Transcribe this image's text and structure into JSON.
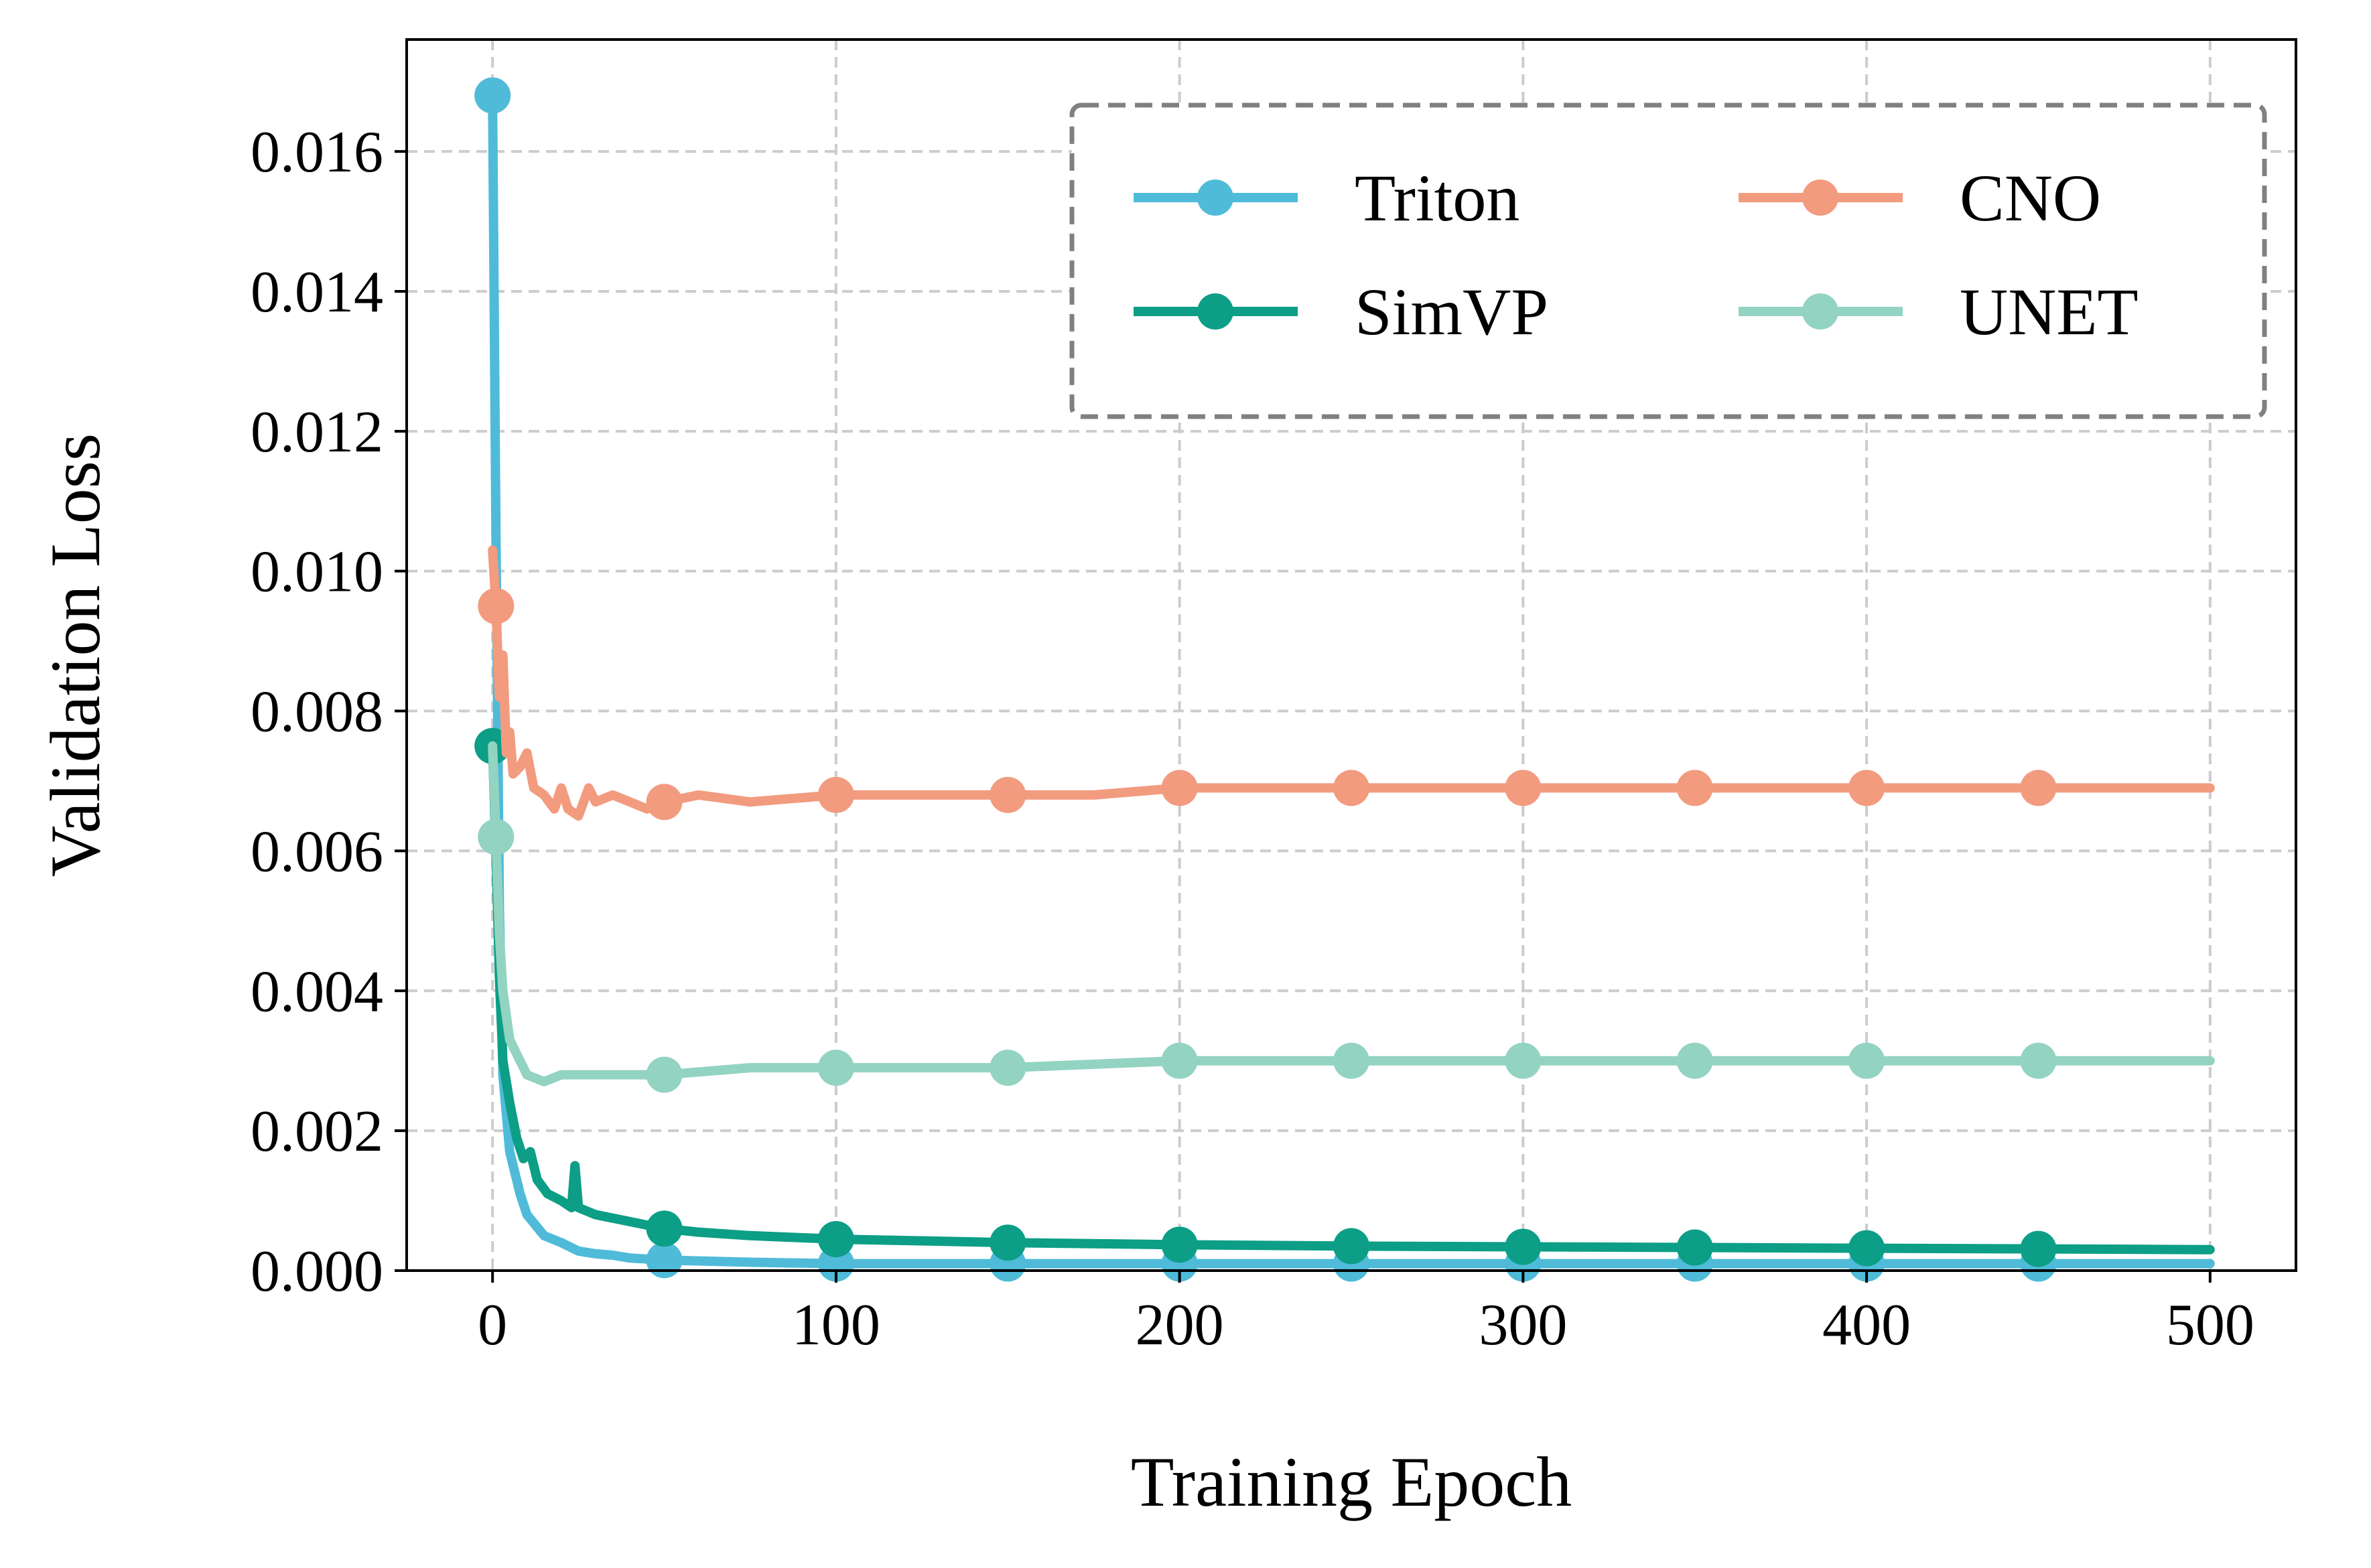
{
  "chart_data": {
    "type": "line",
    "xlabel": "Training Epoch",
    "ylabel": "Validation Loss",
    "xlim": [
      -25,
      525
    ],
    "ylim": [
      0,
      0.0176
    ],
    "xticks": [
      0,
      100,
      200,
      300,
      400,
      500
    ],
    "xtick_labels": [
      "0",
      "100",
      "200",
      "300",
      "400",
      "500"
    ],
    "yticks": [
      0,
      0.002,
      0.004,
      0.006,
      0.008,
      0.01,
      0.012,
      0.014,
      0.016
    ],
    "ytick_labels": [
      "0.000",
      "0.002",
      "0.004",
      "0.006",
      "0.008",
      "0.010",
      "0.012",
      "0.014",
      "0.016"
    ],
    "grid": true,
    "legend": {
      "placement": "top-right",
      "columns": 2,
      "frame_style": "dashed"
    },
    "series": [
      {
        "name": "Triton",
        "color": "#4fbbd9",
        "points": [
          [
            0,
            0.0168
          ],
          [
            1,
            0.0105
          ],
          [
            2,
            0.0052
          ],
          [
            3,
            0.0028
          ],
          [
            5,
            0.0017
          ],
          [
            8,
            0.0011
          ],
          [
            10,
            0.0008
          ],
          [
            15,
            0.0005
          ],
          [
            20,
            0.0004
          ],
          [
            25,
            0.00028
          ],
          [
            30,
            0.00024
          ],
          [
            35,
            0.00022
          ],
          [
            40,
            0.00018
          ],
          [
            50,
            0.00015
          ],
          [
            75,
            0.00012
          ],
          [
            100,
            0.0001
          ],
          [
            150,
            0.0001
          ],
          [
            200,
            0.0001
          ],
          [
            250,
            0.0001
          ],
          [
            300,
            0.0001
          ],
          [
            350,
            0.0001
          ],
          [
            400,
            0.0001
          ],
          [
            450,
            0.0001
          ],
          [
            500,
            0.0001
          ]
        ],
        "markers_at": [
          0,
          50,
          100,
          150,
          200,
          250,
          300,
          350,
          400,
          450
        ]
      },
      {
        "name": "SimVP",
        "color": "#0c9e86",
        "points": [
          [
            0,
            0.0075
          ],
          [
            1,
            0.006
          ],
          [
            2,
            0.0042
          ],
          [
            3,
            0.003
          ],
          [
            5,
            0.0024
          ],
          [
            7,
            0.0019
          ],
          [
            9,
            0.0016
          ],
          [
            11,
            0.0017
          ],
          [
            13,
            0.0013
          ],
          [
            16,
            0.0011
          ],
          [
            20,
            0.001
          ],
          [
            23,
            0.0009
          ],
          [
            24,
            0.0015
          ],
          [
            25,
            0.0009
          ],
          [
            30,
            0.0008
          ],
          [
            40,
            0.0007
          ],
          [
            50,
            0.0006
          ],
          [
            60,
            0.00055
          ],
          [
            75,
            0.0005
          ],
          [
            100,
            0.00045
          ],
          [
            150,
            0.0004
          ],
          [
            200,
            0.00037
          ],
          [
            250,
            0.00035
          ],
          [
            300,
            0.00034
          ],
          [
            350,
            0.00033
          ],
          [
            400,
            0.00032
          ],
          [
            450,
            0.00031
          ],
          [
            500,
            0.0003
          ]
        ],
        "markers_at": [
          0,
          50,
          100,
          150,
          200,
          250,
          300,
          350,
          400,
          450
        ]
      },
      {
        "name": "CNO",
        "color": "#f29b7f",
        "points": [
          [
            0,
            0.0103
          ],
          [
            1,
            0.0095
          ],
          [
            2,
            0.0082
          ],
          [
            3,
            0.0088
          ],
          [
            4,
            0.0074
          ],
          [
            5,
            0.0077
          ],
          [
            6,
            0.0071
          ],
          [
            8,
            0.0072
          ],
          [
            10,
            0.0074
          ],
          [
            12,
            0.0069
          ],
          [
            15,
            0.0068
          ],
          [
            18,
            0.0066
          ],
          [
            20,
            0.0069
          ],
          [
            22,
            0.0066
          ],
          [
            25,
            0.0065
          ],
          [
            28,
            0.0069
          ],
          [
            30,
            0.0067
          ],
          [
            35,
            0.0068
          ],
          [
            40,
            0.0067
          ],
          [
            45,
            0.0066
          ],
          [
            50,
            0.0067
          ],
          [
            60,
            0.0068
          ],
          [
            75,
            0.0067
          ],
          [
            100,
            0.0068
          ],
          [
            125,
            0.0068
          ],
          [
            150,
            0.0068
          ],
          [
            175,
            0.0068
          ],
          [
            200,
            0.0069
          ],
          [
            250,
            0.0069
          ],
          [
            300,
            0.0069
          ],
          [
            350,
            0.0069
          ],
          [
            400,
            0.0069
          ],
          [
            450,
            0.0069
          ],
          [
            500,
            0.0069
          ]
        ],
        "markers_at": [
          1,
          50,
          100,
          150,
          200,
          250,
          300,
          350,
          400,
          450
        ]
      },
      {
        "name": "UNET",
        "color": "#93d3c1",
        "points": [
          [
            0,
            0.0075
          ],
          [
            1,
            0.0062
          ],
          [
            2,
            0.0048
          ],
          [
            3,
            0.004
          ],
          [
            5,
            0.0033
          ],
          [
            8,
            0.003
          ],
          [
            10,
            0.0028
          ],
          [
            15,
            0.0027
          ],
          [
            20,
            0.0028
          ],
          [
            30,
            0.0028
          ],
          [
            40,
            0.0028
          ],
          [
            50,
            0.0028
          ],
          [
            75,
            0.0029
          ],
          [
            100,
            0.0029
          ],
          [
            150,
            0.0029
          ],
          [
            200,
            0.003
          ],
          [
            250,
            0.003
          ],
          [
            300,
            0.003
          ],
          [
            350,
            0.003
          ],
          [
            400,
            0.003
          ],
          [
            450,
            0.003
          ],
          [
            500,
            0.003
          ]
        ],
        "markers_at": [
          1,
          50,
          100,
          150,
          200,
          250,
          300,
          350,
          400,
          450
        ]
      }
    ]
  }
}
